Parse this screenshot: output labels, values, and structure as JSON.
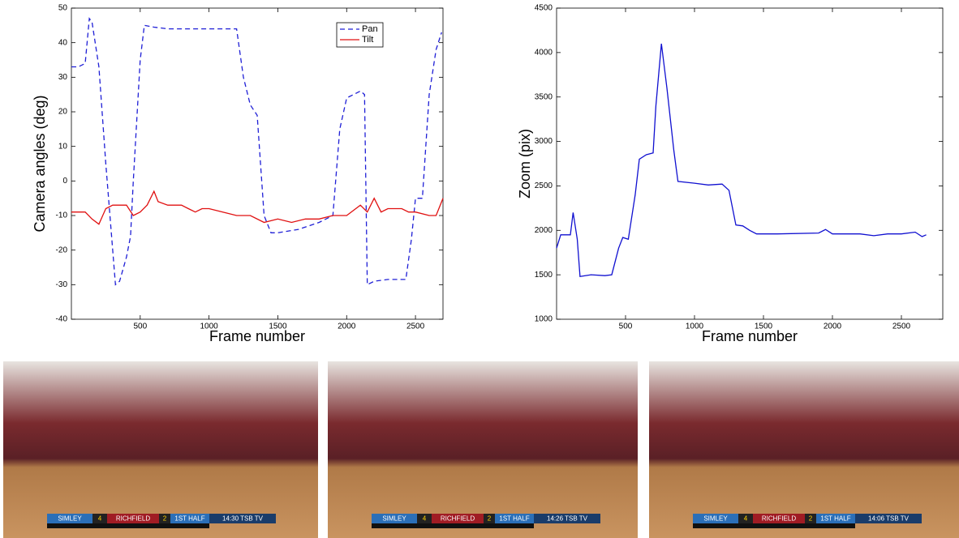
{
  "chart_data": [
    {
      "type": "line",
      "ylabel": "Camera angles (deg)",
      "xlabel": "Frame number",
      "xlim": [
        0,
        2700
      ],
      "xticks": [
        500,
        1000,
        1500,
        2000,
        2500
      ],
      "ylim": [
        -40,
        50
      ],
      "yticks": [
        -40,
        -30,
        -20,
        -10,
        0,
        10,
        20,
        30,
        40,
        50
      ],
      "legend": "upper right",
      "series": [
        {
          "name": "Pan",
          "color": "#1f1fd6",
          "linestyle": "dashed",
          "x": [
            0,
            50,
            100,
            130,
            150,
            200,
            250,
            300,
            320,
            350,
            400,
            430,
            450,
            500,
            530,
            600,
            700,
            1000,
            1200,
            1250,
            1300,
            1350,
            1400,
            1450,
            1500,
            1650,
            1800,
            1900,
            1950,
            2000,
            2050,
            2100,
            2130,
            2150,
            2200,
            2300,
            2430,
            2470,
            2500,
            2550,
            2600,
            2650,
            2690
          ],
          "values": [
            33,
            33,
            34,
            47,
            46,
            33,
            5,
            -20,
            -30,
            -29,
            -22,
            -16,
            0,
            35,
            45,
            44.5,
            44,
            44,
            44,
            30,
            22,
            19,
            -10,
            -15,
            -15,
            -14,
            -12,
            -10,
            15,
            24,
            25,
            26,
            25,
            -30,
            -29,
            -28.5,
            -28.5,
            -17,
            -5,
            -5,
            25,
            38,
            43
          ]
        },
        {
          "name": "Tilt",
          "color": "#e01010",
          "linestyle": "solid",
          "x": [
            0,
            100,
            150,
            200,
            250,
            300,
            400,
            450,
            500,
            550,
            600,
            630,
            700,
            800,
            850,
            900,
            950,
            1000,
            1100,
            1200,
            1300,
            1400,
            1500,
            1600,
            1700,
            1800,
            1900,
            2000,
            2100,
            2150,
            2200,
            2250,
            2300,
            2400,
            2450,
            2500,
            2600,
            2650,
            2700
          ],
          "values": [
            -9,
            -9,
            -11,
            -12.5,
            -8,
            -7,
            -7,
            -10,
            -9,
            -7,
            -3,
            -6,
            -7,
            -7,
            -8,
            -9,
            -8,
            -8,
            -9,
            -10,
            -10,
            -12,
            -11,
            -12,
            -11,
            -11,
            -10,
            -10,
            -7,
            -9,
            -5,
            -9,
            -8,
            -8,
            -9,
            -9,
            -10,
            -10,
            -5
          ]
        }
      ]
    },
    {
      "type": "line",
      "ylabel": "Zoom (pix)",
      "xlabel": "Frame number",
      "xlim": [
        0,
        2800
      ],
      "xticks": [
        500,
        1000,
        1500,
        2000,
        2500
      ],
      "ylim": [
        1000,
        4500
      ],
      "yticks": [
        1000,
        1500,
        2000,
        2500,
        3000,
        3500,
        4000,
        4500
      ],
      "series": [
        {
          "color": "#1010d0",
          "linestyle": "solid",
          "x": [
            0,
            30,
            100,
            120,
            150,
            170,
            250,
            350,
            400,
            450,
            480,
            520,
            570,
            600,
            650,
            700,
            720,
            760,
            800,
            850,
            880,
            1000,
            1100,
            1200,
            1250,
            1300,
            1350,
            1400,
            1450,
            1600,
            1900,
            1950,
            2000,
            2200,
            2300,
            2400,
            2500,
            2600,
            2650,
            2680
          ],
          "values": [
            1800,
            1950,
            1950,
            2200,
            1900,
            1480,
            1500,
            1490,
            1500,
            1800,
            1920,
            1900,
            2400,
            2800,
            2850,
            2870,
            3400,
            4100,
            3600,
            2900,
            2550,
            2530,
            2510,
            2520,
            2450,
            2060,
            2050,
            2000,
            1960,
            1960,
            1970,
            2010,
            1960,
            1960,
            1940,
            1960,
            1960,
            1980,
            1930,
            1950
          ]
        }
      ]
    }
  ],
  "photos": [
    {
      "scoreboard": [
        "SIMLEY",
        "4",
        "RICHFIELD",
        "2",
        "1ST HALF",
        "14:30 TSB TV"
      ]
    },
    {
      "scoreboard": [
        "SIMLEY",
        "4",
        "RICHFIELD",
        "2",
        "1ST HALF",
        "14:26 TSB TV"
      ]
    },
    {
      "scoreboard": [
        "SIMLEY",
        "4",
        "RICHFIELD",
        "2",
        "1ST HALF",
        "14:06 TSB TV"
      ]
    }
  ]
}
